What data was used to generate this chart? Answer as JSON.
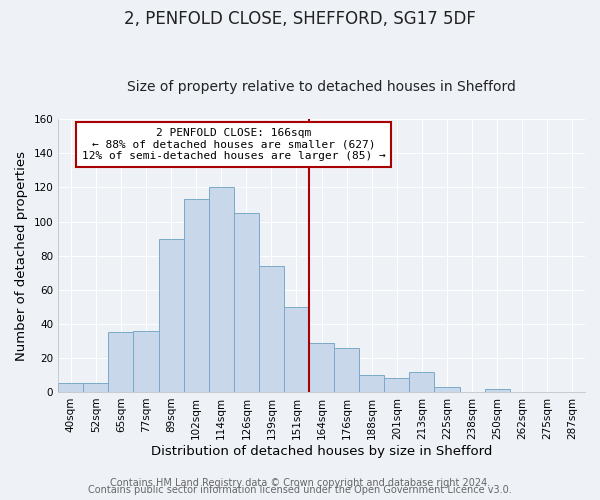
{
  "title": "2, PENFOLD CLOSE, SHEFFORD, SG17 5DF",
  "subtitle": "Size of property relative to detached houses in Shefford",
  "xlabel": "Distribution of detached houses by size in Shefford",
  "ylabel": "Number of detached properties",
  "bin_labels": [
    "40sqm",
    "52sqm",
    "65sqm",
    "77sqm",
    "89sqm",
    "102sqm",
    "114sqm",
    "126sqm",
    "139sqm",
    "151sqm",
    "164sqm",
    "176sqm",
    "188sqm",
    "201sqm",
    "213sqm",
    "225sqm",
    "238sqm",
    "250sqm",
    "262sqm",
    "275sqm",
    "287sqm"
  ],
  "bar_heights": [
    5,
    5,
    35,
    36,
    90,
    113,
    120,
    105,
    74,
    50,
    29,
    26,
    10,
    8,
    12,
    3,
    0,
    2,
    0,
    0,
    0
  ],
  "bar_color": "#c8d8ea",
  "bar_edge_color": "#7aaac8",
  "vline_color": "#aa0000",
  "annotation_text": "2 PENFOLD CLOSE: 166sqm\n← 88% of detached houses are smaller (627)\n12% of semi-detached houses are larger (85) →",
  "annotation_box_color": "#ffffff",
  "annotation_box_edge": "#aa0000",
  "ylim": [
    0,
    160
  ],
  "yticks": [
    0,
    20,
    40,
    60,
    80,
    100,
    120,
    140,
    160
  ],
  "footer1": "Contains HM Land Registry data © Crown copyright and database right 2024.",
  "footer2": "Contains public sector information licensed under the Open Government Licence v3.0.",
  "background_color": "#eef2f7",
  "plot_background": "#eef2f7",
  "grid_color": "#ffffff",
  "title_fontsize": 12,
  "subtitle_fontsize": 10,
  "label_fontsize": 9.5,
  "tick_fontsize": 7.5,
  "footer_fontsize": 7,
  "ann_fontsize": 8
}
